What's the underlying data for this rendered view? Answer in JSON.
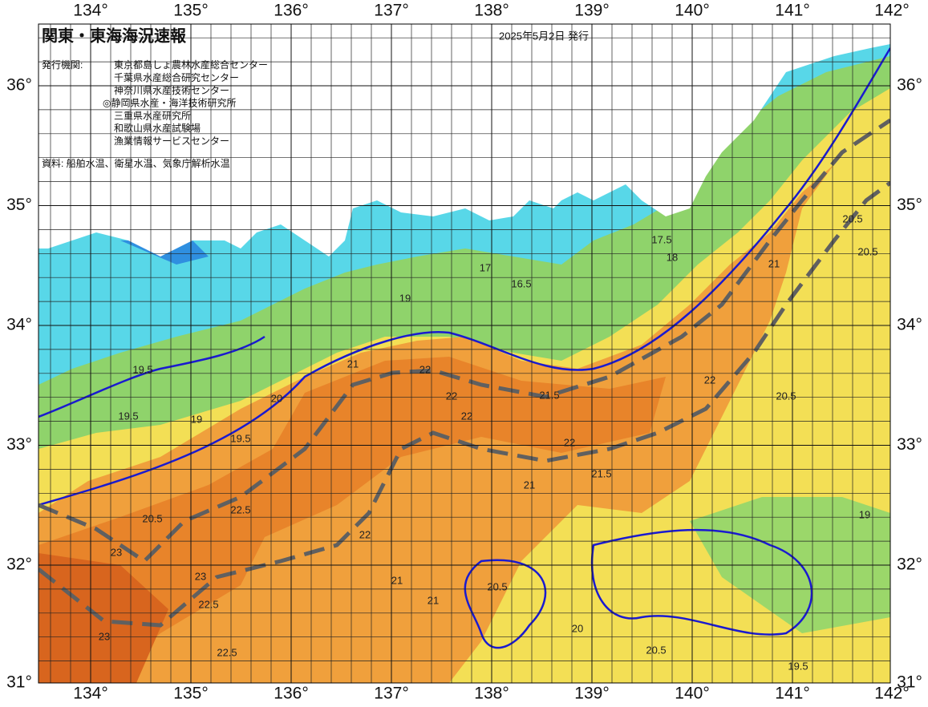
{
  "header": {
    "title": "関東・東海海況速報",
    "date": "2025年5月2日 発行",
    "issuer_label": "発行機関:",
    "issuers": [
      "東京都島しょ農林水産総合センター",
      "千葉県水産総合研究センター",
      "神奈川県水産技術センター",
      "◎静岡県水産・海洋技術研究所",
      "三重県水産研究所",
      "和歌山県水産試験場",
      "漁業情報サービスセンター"
    ],
    "source": "資料: 船舶水温、衛星水温、気象庁解析水温"
  },
  "map": {
    "xticks": [
      {
        "value": 134,
        "label": "134°"
      },
      {
        "value": 135,
        "label": "135°"
      },
      {
        "value": 136,
        "label": "136°"
      },
      {
        "value": 137,
        "label": "137°"
      },
      {
        "value": 138,
        "label": "138°"
      },
      {
        "value": 139,
        "label": "139°"
      },
      {
        "value": 140,
        "label": "140°"
      },
      {
        "value": 141,
        "label": "141°"
      },
      {
        "value": 142,
        "label": "142°"
      }
    ],
    "yticks": [
      {
        "value": 36,
        "label": "36°"
      },
      {
        "value": 35,
        "label": "35°"
      },
      {
        "value": 34,
        "label": "34°"
      },
      {
        "value": 33,
        "label": "33°"
      },
      {
        "value": 32,
        "label": "32°"
      },
      {
        "value": 31,
        "label": "31°"
      }
    ],
    "contour_labels": [
      "17.5",
      "18",
      "17",
      "16.5",
      "19",
      "19.5",
      "20",
      "19.5",
      "19",
      "19.5",
      "20.5",
      "21",
      "22",
      "22",
      "22",
      "22",
      "21.5",
      "21",
      "22",
      "23",
      "23",
      "23",
      "22.5",
      "22.5",
      "21",
      "21",
      "20.5",
      "20.5",
      "19.5",
      "19",
      "20.5",
      "20.5",
      "20.5",
      "21",
      "22",
      "21.5",
      "20",
      "22.5"
    ]
  }
}
